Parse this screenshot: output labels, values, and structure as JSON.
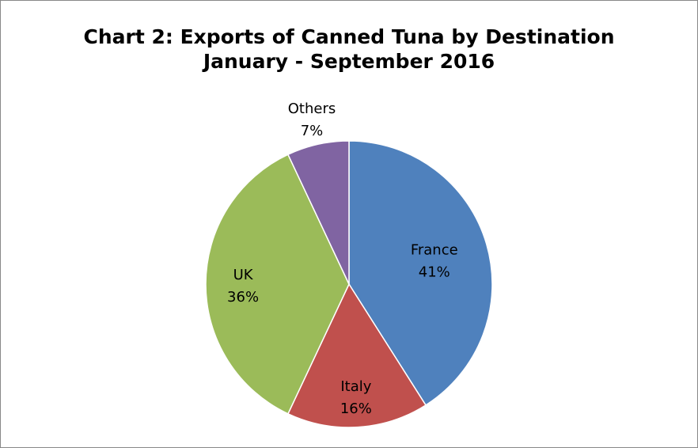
{
  "chart_data": {
    "type": "pie",
    "title": "Chart 2: Exports of Canned Tuna by Destination",
    "subtitle": "January - September 2016",
    "slices": [
      {
        "label": "France",
        "value": 41,
        "value_label": "41%",
        "color": "#4F81BD"
      },
      {
        "label": "Italy",
        "value": 16,
        "value_label": "16%",
        "color": "#C0504D"
      },
      {
        "label": "UK",
        "value": 36,
        "value_label": "36%",
        "color": "#9BBB59"
      },
      {
        "label": "Others",
        "value": 7,
        "value_label": "7%",
        "color": "#8064A2"
      }
    ],
    "start_angle_deg": 0,
    "direction": "clockwise",
    "data_labels": "inside-end, Others outside",
    "legend": "none"
  }
}
